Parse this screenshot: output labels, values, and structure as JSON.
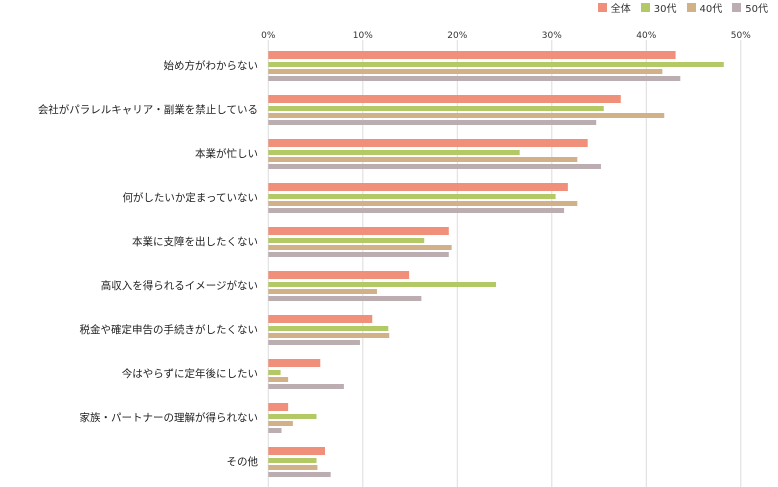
{
  "chart_data": {
    "type": "bar",
    "orientation": "horizontal",
    "xlim": [
      0,
      50
    ],
    "x_ticks": [
      "0%",
      "10%",
      "20%",
      "30%",
      "40%",
      "50%"
    ],
    "grid": true,
    "legend_position": "top-right",
    "categories": [
      "始め方がわからない",
      "会社がパラレルキャリア・副業を禁止している",
      "本業が忙しい",
      "何がしたいか定まっていない",
      "本業に支障を出したくない",
      "高収入を得られるイメージがない",
      "税金や確定申告の手続きがしたくない",
      "今はやらずに定年後にしたい",
      "家族・パートナーの理解が得られない",
      "その他"
    ],
    "series": [
      {
        "name": "全体",
        "color": "#f0907a",
        "values": [
          43.1,
          37.3,
          33.8,
          31.7,
          19.1,
          14.9,
          11.0,
          5.5,
          2.1,
          6.0
        ]
      },
      {
        "name": "30代",
        "color": "#b2c965",
        "values": [
          48.2,
          35.5,
          26.6,
          30.4,
          16.5,
          24.1,
          12.7,
          1.3,
          5.1,
          5.1
        ]
      },
      {
        "name": "40代",
        "color": "#d2b088",
        "values": [
          41.7,
          41.9,
          32.7,
          32.7,
          19.4,
          11.5,
          12.8,
          2.1,
          2.6,
          5.2
        ]
      },
      {
        "name": "50代",
        "color": "#bcaeb0",
        "values": [
          43.6,
          34.7,
          35.2,
          31.3,
          19.1,
          16.2,
          9.7,
          8.0,
          1.4,
          6.6
        ]
      }
    ]
  }
}
